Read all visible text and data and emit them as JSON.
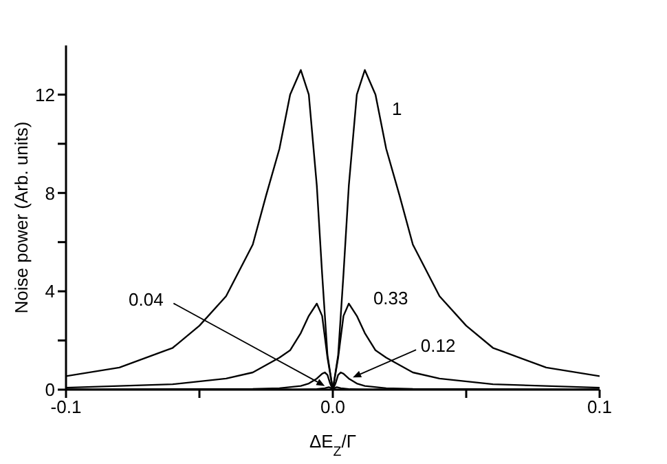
{
  "chart_data": {
    "type": "line",
    "xlabel": "ΔE$_{Z}$/Γ",
    "ylabel": "Noise power (Arb. units)",
    "xlim": [
      -0.1,
      0.1
    ],
    "xticks": [
      -0.1,
      {
        "value": -0.05,
        "label": null
      },
      {
        "value": 0,
        "label": "0.0"
      },
      {
        "value": 0.05,
        "label": null
      },
      0.1
    ],
    "ylim": [
      0,
      14
    ],
    "yticks": [
      0,
      {
        "value": 2,
        "label": null
      },
      4,
      {
        "value": 6,
        "label": null
      },
      8,
      {
        "value": 10,
        "label": null
      },
      12
    ],
    "series": [
      {
        "color": "#000000",
        "x": [
          -0.1,
          -0.08,
          -0.06,
          -0.05,
          -0.04,
          -0.03,
          -0.025,
          -0.02,
          -0.016,
          -0.012,
          -0.009,
          -0.006,
          -0.004,
          -0.002,
          0,
          0.002,
          0.004,
          0.006,
          0.009,
          0.012,
          0.016,
          0.02,
          0.025,
          0.03,
          0.04,
          0.05,
          0.06,
          0.08,
          0.1
        ],
        "values": [
          0.55,
          0.9,
          1.7,
          2.6,
          3.8,
          5.9,
          7.9,
          9.8,
          12,
          13,
          12,
          8.3,
          4.7,
          1.4,
          0,
          1.4,
          4.7,
          8.3,
          12,
          13,
          12,
          9.8,
          7.9,
          5.9,
          3.8,
          2.6,
          1.7,
          0.9,
          0.55
        ]
      },
      {
        "color": "#000000",
        "x": [
          -0.1,
          -0.06,
          -0.04,
          -0.03,
          -0.02,
          -0.016,
          -0.012,
          -0.009,
          -0.006,
          -0.004,
          -0.002,
          0,
          0.002,
          0.004,
          0.006,
          0.009,
          0.012,
          0.016,
          0.02,
          0.03,
          0.04,
          0.06,
          0.1
        ],
        "values": [
          0.08,
          0.22,
          0.45,
          0.7,
          1.3,
          1.6,
          2.3,
          3,
          3.5,
          3,
          1.3,
          0,
          1.3,
          3,
          3.5,
          3,
          2.3,
          1.6,
          1.3,
          0.7,
          0.45,
          0.22,
          0.08
        ]
      },
      {
        "color": "#000000",
        "x": [
          -0.1,
          -0.03,
          -0.02,
          -0.012,
          -0.009,
          -0.006,
          -0.004,
          -0.003,
          -0.002,
          -0.001,
          0,
          0.001,
          0.002,
          0.003,
          0.004,
          0.006,
          0.009,
          0.012,
          0.02,
          0.03,
          0.1
        ],
        "values": [
          0.01,
          0.03,
          0.06,
          0.15,
          0.25,
          0.45,
          0.65,
          0.7,
          0.6,
          0.25,
          0,
          0.25,
          0.6,
          0.7,
          0.65,
          0.45,
          0.25,
          0.15,
          0.06,
          0.03,
          0.01
        ]
      },
      {
        "color": "#000000",
        "x": [
          -0.1,
          -0.012,
          -0.006,
          -0.003,
          -0.0015,
          -0.001,
          -0.0005,
          0,
          0.0005,
          0.001,
          0.0015,
          0.003,
          0.006,
          0.012,
          0.1
        ],
        "values": [
          0,
          0.01,
          0.02,
          0.06,
          0.1,
          0.08,
          0.04,
          0,
          0.04,
          0.08,
          0.1,
          0.06,
          0.02,
          0.01,
          0
        ]
      }
    ],
    "annotations": [
      {
        "text": "1",
        "x": 0.017,
        "y": 11.6
      },
      {
        "text": "0.33",
        "x": 0.009,
        "y": 3.1
      },
      {
        "text": "0.12",
        "x": 0.0075,
        "y": 0.5
      },
      {
        "text": "0.04",
        "x": -0.003,
        "y": 0.15
      }
    ]
  }
}
